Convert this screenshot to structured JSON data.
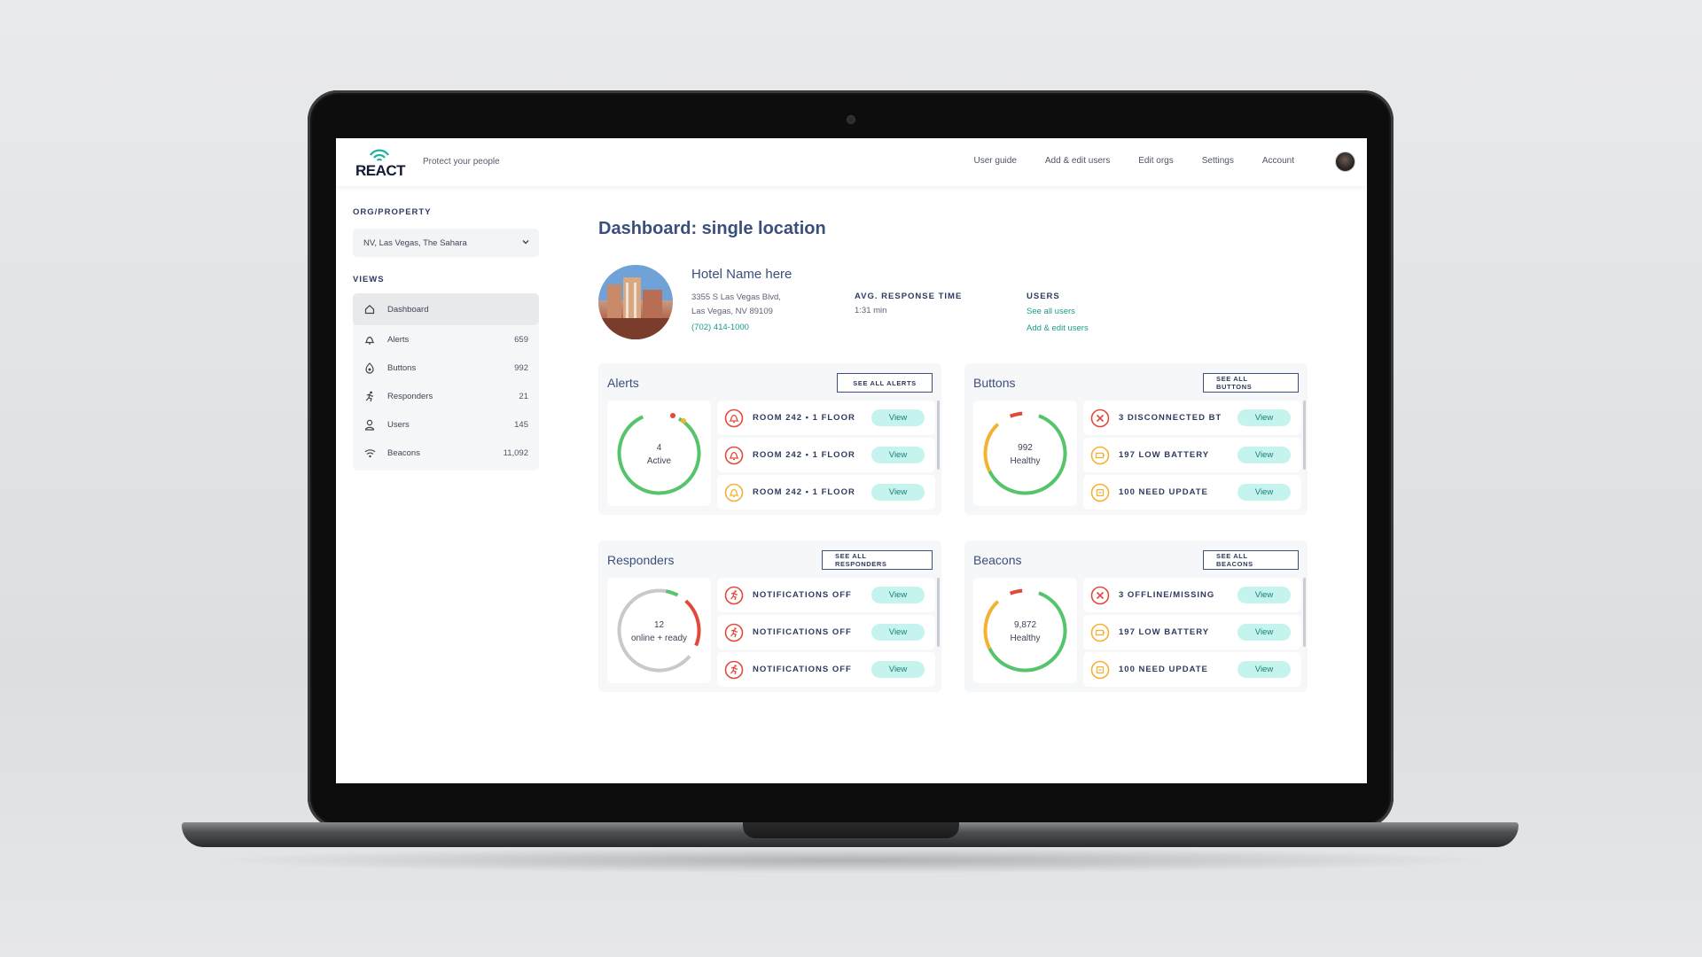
{
  "app": {
    "logo_text": "REACT",
    "tagline": "Protect your people",
    "nav": [
      "User guide",
      "Add & edit users",
      "Edit orgs",
      "Settings",
      "Account"
    ]
  },
  "sidebar": {
    "org_label": "ORG/PROPERTY",
    "org_value": "NV, Las Vegas, The Sahara",
    "views_label": "VIEWS",
    "items": [
      {
        "label": "Dashboard",
        "count": "",
        "icon": "home-icon",
        "active": true
      },
      {
        "label": "Alerts",
        "count": "659",
        "icon": "bell-icon"
      },
      {
        "label": "Buttons",
        "count": "992",
        "icon": "button-device-icon"
      },
      {
        "label": "Responders",
        "count": "21",
        "icon": "runner-icon"
      },
      {
        "label": "Users",
        "count": "145",
        "icon": "user-icon"
      },
      {
        "label": "Beacons",
        "count": "11,092",
        "icon": "wifi-icon"
      }
    ]
  },
  "main": {
    "title": "Dashboard: single location",
    "hotel": {
      "name": "Hotel Name here",
      "address_line1": "3355 S Las Vegas Blvd,",
      "address_line2": "Las Vegas, NV 89109",
      "phone": "(702) 414-1000"
    },
    "response": {
      "label": "AVG. RESPONSE TIME",
      "value": "1:31 min"
    },
    "users": {
      "label": "USERS",
      "link_all": "See all users",
      "link_edit": "Add & edit users"
    }
  },
  "cards": {
    "alerts": {
      "title": "Alerts",
      "see_all": "SEE ALL  ALERTS",
      "ring_value": "4",
      "ring_label": "Active",
      "items": [
        {
          "label": "ROOM 242 • 1 FLOOR",
          "severity": "red",
          "icon": "bell-alert-icon",
          "action": "View"
        },
        {
          "label": "ROOM 242 • 1 FLOOR",
          "severity": "red",
          "icon": "bell-alert-icon",
          "action": "View"
        },
        {
          "label": "ROOM 242 • 1 FLOOR",
          "severity": "amber",
          "icon": "bell-alert-icon",
          "action": "View"
        }
      ]
    },
    "buttons": {
      "title": "Buttons",
      "see_all": "SEE ALL  BUTTONS",
      "ring_value": "992",
      "ring_label": "Healthy",
      "items": [
        {
          "label": "3 DISCONNECTED BT",
          "severity": "red",
          "icon": "x-circle-icon",
          "action": "View"
        },
        {
          "label": "197 LOW BATTERY",
          "severity": "amber",
          "icon": "battery-icon",
          "action": "View"
        },
        {
          "label": "100 NEED UPDATE",
          "severity": "amber",
          "icon": "update-icon",
          "action": "View"
        }
      ]
    },
    "responders": {
      "title": "Responders",
      "see_all": "SEE ALL  RESPONDERS",
      "ring_value": "12",
      "ring_label": "online + ready",
      "items": [
        {
          "label": "NOTIFICATIONS OFF",
          "severity": "red",
          "icon": "runner-alert-icon",
          "action": "View"
        },
        {
          "label": "NOTIFICATIONS OFF",
          "severity": "red",
          "icon": "runner-alert-icon",
          "action": "View"
        },
        {
          "label": "NOTIFICATIONS OFF",
          "severity": "red",
          "icon": "runner-alert-icon",
          "action": "View"
        }
      ]
    },
    "beacons": {
      "title": "Beacons",
      "see_all": "SEE ALL  BEACONS",
      "ring_value": "9,872",
      "ring_label": "Healthy",
      "items": [
        {
          "label": "3 OFFLINE/MISSING",
          "severity": "red",
          "icon": "x-circle-icon",
          "action": "View"
        },
        {
          "label": "197 LOW BATTERY",
          "severity": "amber",
          "icon": "battery-icon",
          "action": "View"
        },
        {
          "label": "100 NEED UPDATE",
          "severity": "amber",
          "icon": "update-icon",
          "action": "View"
        }
      ]
    }
  },
  "colors": {
    "accent_teal": "#1a9b8c",
    "view_button_bg": "#c5f3ee",
    "danger": "#e04a3a",
    "warning": "#f3b233",
    "healthy": "#56c46c",
    "title_navy": "#3b4f7d"
  }
}
